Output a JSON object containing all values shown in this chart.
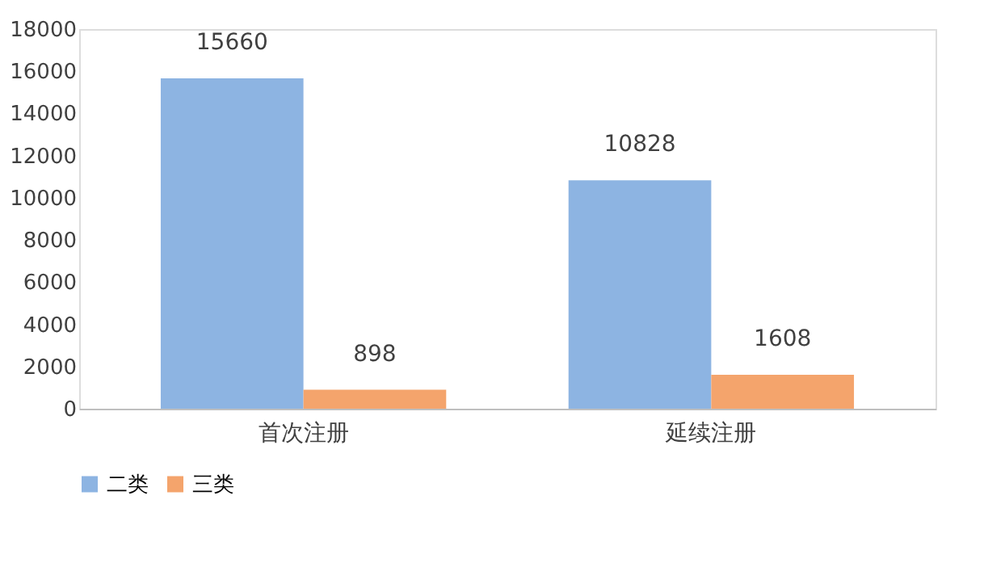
{
  "chart_data": {
    "type": "bar",
    "categories": [
      "首次注册",
      "延续注册"
    ],
    "series": [
      {
        "name": "二类",
        "color": "#8db4e2",
        "values": [
          15660,
          10828
        ]
      },
      {
        "name": "三类",
        "color": "#f4a46c",
        "values": [
          898,
          1608
        ]
      }
    ],
    "ylim": [
      0,
      18000
    ],
    "yticks": [
      0,
      2000,
      4000,
      6000,
      8000,
      10000,
      12000,
      14000,
      16000,
      18000
    ],
    "data_labels": true,
    "grid": false,
    "legend": "bottom"
  }
}
